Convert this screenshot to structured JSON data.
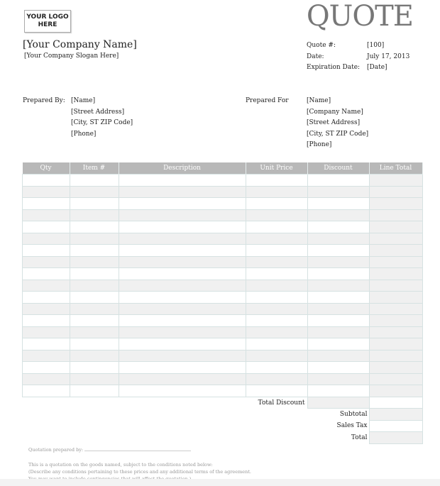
{
  "logo": {
    "line1": "YOUR LOGO",
    "line2": "HERE"
  },
  "title": "QUOTE",
  "company": {
    "name": "[Your Company Name]",
    "slogan": "[Your Company Slogan Here]"
  },
  "meta": [
    {
      "label": "Quote #:",
      "value": "[100]"
    },
    {
      "label": "Date:",
      "value": "July 17, 2013"
    },
    {
      "label": "Expiration Date:",
      "value": "[Date]"
    }
  ],
  "prepared_by": {
    "label": "Prepared By:",
    "lines": [
      "[Name]",
      "[Street Address]",
      "[City, ST  ZIP Code]",
      "[Phone]"
    ]
  },
  "prepared_for": {
    "label": "Prepared For",
    "lines": [
      "[Name]",
      "[Company Name]",
      "[Street Address]",
      "[City, ST  ZIP Code]",
      "[Phone]"
    ]
  },
  "table": {
    "headers": [
      "Qty",
      "Item #",
      "Description",
      "Unit Price",
      "Discount",
      "Line Total"
    ]
  },
  "totals": {
    "total_discount": "Total Discount",
    "subtotal": "Subtotal",
    "sales_tax": "Sales Tax",
    "total": "Total"
  },
  "footer": {
    "prepared_by": "Quotation prepared by:",
    "line1": "This is a quotation on the goods named, subject to the conditions noted below:",
    "line2": "(Describe any conditions pertaining to these prices and any additional terms of the agreement.",
    "line3": "You may want to include contingencies that will affect the quotation.)"
  }
}
